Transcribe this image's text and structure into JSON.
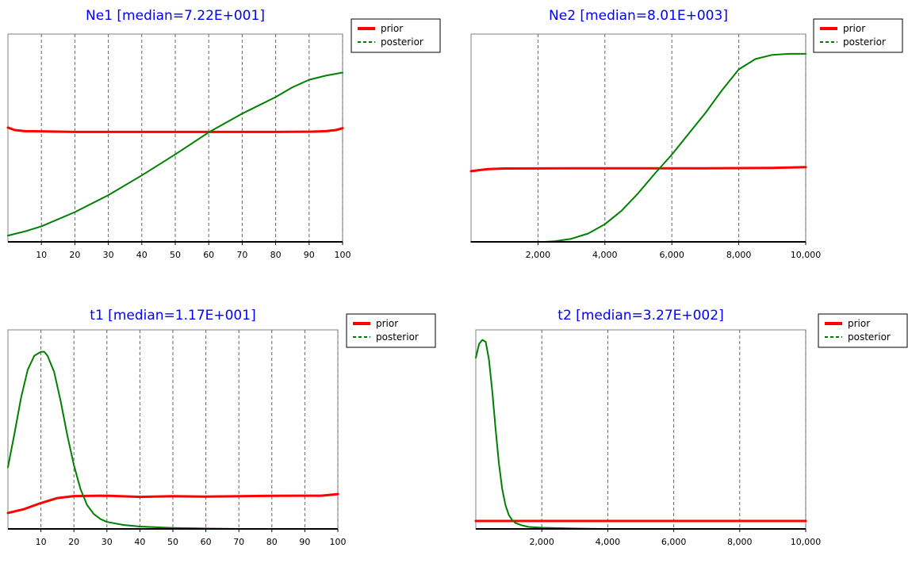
{
  "chart_data": [
    {
      "type": "line",
      "title": "Ne1 [median=7.22E+001]",
      "xlabel": "",
      "ylabel": "",
      "xlim": [
        0,
        100
      ],
      "ylim": [
        0,
        1
      ],
      "x_ticks": [
        10,
        20,
        30,
        40,
        50,
        60,
        70,
        80,
        90,
        100
      ],
      "x_tick_labels": [
        "10",
        "20",
        "30",
        "40",
        "50",
        "60",
        "70",
        "80",
        "90",
        "100"
      ],
      "grid": "vertical-dashed",
      "legend": {
        "placement": "right-of-plot-top",
        "entries": [
          "prior",
          "posterior"
        ]
      },
      "series": [
        {
          "name": "prior",
          "color": "#ff0000",
          "style": "solid",
          "points": [
            [
              0,
              0.55
            ],
            [
              2,
              0.538
            ],
            [
              5,
              0.533
            ],
            [
              10,
              0.532
            ],
            [
              20,
              0.529
            ],
            [
              30,
              0.529
            ],
            [
              40,
              0.529
            ],
            [
              50,
              0.529
            ],
            [
              60,
              0.529
            ],
            [
              70,
              0.529
            ],
            [
              80,
              0.529
            ],
            [
              90,
              0.53
            ],
            [
              95,
              0.533
            ],
            [
              98,
              0.538
            ],
            [
              100,
              0.547
            ]
          ]
        },
        {
          "name": "posterior",
          "color": "#008000",
          "style": "solid",
          "points": [
            [
              0,
              0.03
            ],
            [
              5,
              0.05
            ],
            [
              10,
              0.075
            ],
            [
              20,
              0.143
            ],
            [
              30,
              0.225
            ],
            [
              40,
              0.32
            ],
            [
              50,
              0.421
            ],
            [
              60,
              0.527
            ],
            [
              70,
              0.617
            ],
            [
              80,
              0.697
            ],
            [
              85,
              0.744
            ],
            [
              90,
              0.78
            ],
            [
              95,
              0.8
            ],
            [
              100,
              0.815
            ]
          ]
        }
      ]
    },
    {
      "type": "line",
      "title": "Ne2 [median=8.01E+003]",
      "xlabel": "",
      "ylabel": "",
      "xlim": [
        0,
        10000
      ],
      "ylim": [
        0,
        1
      ],
      "x_ticks": [
        2000,
        4000,
        6000,
        8000,
        10000
      ],
      "x_tick_labels": [
        "2,000",
        "4,000",
        "6,000",
        "8,000",
        "10,000"
      ],
      "grid": "vertical-dashed",
      "legend": {
        "placement": "right-of-plot-top",
        "entries": [
          "prior",
          "posterior"
        ]
      },
      "series": [
        {
          "name": "prior",
          "color": "#ff0000",
          "style": "solid",
          "points": [
            [
              0,
              0.34
            ],
            [
              500,
              0.35
            ],
            [
              1000,
              0.353
            ],
            [
              3000,
              0.354
            ],
            [
              5000,
              0.354
            ],
            [
              7000,
              0.354
            ],
            [
              9000,
              0.356
            ],
            [
              10000,
              0.36
            ]
          ]
        },
        {
          "name": "posterior",
          "color": "#008000",
          "style": "solid",
          "points": [
            [
              0,
              0
            ],
            [
              2200,
              0
            ],
            [
              2500,
              0.003
            ],
            [
              3000,
              0.015
            ],
            [
              3500,
              0.04
            ],
            [
              4000,
              0.085
            ],
            [
              4500,
              0.15
            ],
            [
              5000,
              0.235
            ],
            [
              5500,
              0.33
            ],
            [
              6000,
              0.42
            ],
            [
              6500,
              0.52
            ],
            [
              7000,
              0.62
            ],
            [
              7500,
              0.73
            ],
            [
              8000,
              0.83
            ],
            [
              8500,
              0.88
            ],
            [
              9000,
              0.9
            ],
            [
              9500,
              0.905
            ],
            [
              10000,
              0.905
            ]
          ]
        }
      ]
    },
    {
      "type": "line",
      "title": "t1 [median=1.17E+001]",
      "xlabel": "",
      "ylabel": "",
      "xlim": [
        0,
        100
      ],
      "ylim": [
        0,
        1
      ],
      "x_ticks": [
        10,
        20,
        30,
        40,
        50,
        60,
        70,
        80,
        90,
        100
      ],
      "x_tick_labels": [
        "10",
        "20",
        "30",
        "40",
        "50",
        "60",
        "70",
        "80",
        "90",
        "100"
      ],
      "grid": "vertical-dashed",
      "legend": {
        "placement": "right-of-plot-top",
        "entries": [
          "prior",
          "posterior"
        ]
      },
      "series": [
        {
          "name": "prior",
          "color": "#ff0000",
          "style": "solid",
          "points": [
            [
              0,
              0.08
            ],
            [
              5,
              0.1
            ],
            [
              10,
              0.13
            ],
            [
              15,
              0.155
            ],
            [
              20,
              0.165
            ],
            [
              30,
              0.167
            ],
            [
              40,
              0.161
            ],
            [
              50,
              0.164
            ],
            [
              60,
              0.162
            ],
            [
              70,
              0.164
            ],
            [
              80,
              0.166
            ],
            [
              90,
              0.167
            ],
            [
              95,
              0.167
            ],
            [
              100,
              0.175
            ]
          ]
        },
        {
          "name": "posterior",
          "color": "#008000",
          "style": "solid",
          "points": [
            [
              0,
              0.31
            ],
            [
              2,
              0.48
            ],
            [
              4,
              0.66
            ],
            [
              6,
              0.8
            ],
            [
              8,
              0.87
            ],
            [
              10,
              0.89
            ],
            [
              11,
              0.89
            ],
            [
              12,
              0.87
            ],
            [
              14,
              0.79
            ],
            [
              16,
              0.64
            ],
            [
              18,
              0.47
            ],
            [
              20,
              0.32
            ],
            [
              22,
              0.2
            ],
            [
              24,
              0.12
            ],
            [
              26,
              0.075
            ],
            [
              28,
              0.05
            ],
            [
              30,
              0.035
            ],
            [
              35,
              0.02
            ],
            [
              40,
              0.012
            ],
            [
              50,
              0.005
            ],
            [
              60,
              0.002
            ],
            [
              70,
              0
            ]
          ]
        }
      ]
    },
    {
      "type": "line",
      "title": "t2 [median=3.27E+002]",
      "xlabel": "",
      "ylabel": "",
      "xlim": [
        0,
        10000
      ],
      "ylim": [
        0,
        1
      ],
      "x_ticks": [
        2000,
        4000,
        6000,
        8000,
        10000
      ],
      "x_tick_labels": [
        "2,000",
        "4,000",
        "6,000",
        "8,000",
        "10,000"
      ],
      "grid": "vertical-dashed",
      "legend": {
        "placement": "right-of-plot-top",
        "entries": [
          "prior",
          "posterior"
        ]
      },
      "series": [
        {
          "name": "prior",
          "color": "#ff0000",
          "style": "solid",
          "points": [
            [
              0,
              0.04
            ],
            [
              10000,
              0.04
            ]
          ]
        },
        {
          "name": "posterior",
          "color": "#008000",
          "style": "solid",
          "points": [
            [
              0,
              0.86
            ],
            [
              100,
              0.93
            ],
            [
              200,
              0.95
            ],
            [
              300,
              0.94
            ],
            [
              400,
              0.85
            ],
            [
              500,
              0.69
            ],
            [
              600,
              0.5
            ],
            [
              700,
              0.33
            ],
            [
              800,
              0.2
            ],
            [
              900,
              0.12
            ],
            [
              1000,
              0.07
            ],
            [
              1100,
              0.045
            ],
            [
              1200,
              0.03
            ],
            [
              1400,
              0.018
            ],
            [
              1600,
              0.01
            ],
            [
              2000,
              0.006
            ],
            [
              3000,
              0.002
            ],
            [
              3800,
              0
            ]
          ]
        }
      ]
    }
  ]
}
